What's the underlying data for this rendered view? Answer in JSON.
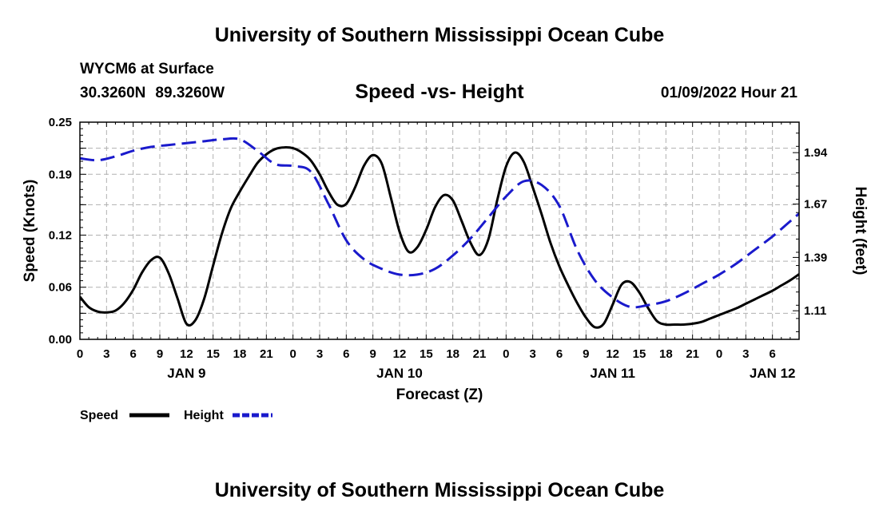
{
  "header": {
    "title": "University of Southern Mississippi Ocean Cube",
    "station": "WYCM6 at Surface",
    "latitude": "30.3260N",
    "longitude": "89.3260W",
    "subtitle": "Speed -vs- Height",
    "datetime": "01/09/2022 Hour 21"
  },
  "footer": {
    "title": "University of Southern Mississippi Ocean Cube"
  },
  "colors": {
    "speed": "#000000",
    "height": "#1a1acc",
    "grid": "#b0b0b0"
  },
  "chart_data": {
    "type": "line",
    "title": "Speed -vs- Height",
    "xlabel": "Forecast (Z)",
    "ylabel": "Speed (Knots)",
    "ylabel_right": "Height (feet)",
    "grid": true,
    "legend_position": "bottom-left",
    "x_range_hours": [
      0,
      81
    ],
    "x_tick_labels": [
      "0",
      "3",
      "6",
      "9",
      "12",
      "15",
      "18",
      "21",
      "0",
      "3",
      "6",
      "9",
      "12",
      "15",
      "18",
      "21",
      "0",
      "3",
      "6",
      "9",
      "12",
      "15",
      "18",
      "21",
      "0",
      "3",
      "6"
    ],
    "date_labels": [
      {
        "label": "JAN 9",
        "hour": 12
      },
      {
        "label": "JAN 10",
        "hour": 36
      },
      {
        "label": "JAN 11",
        "hour": 60
      },
      {
        "label": "JAN 12",
        "hour": 78
      }
    ],
    "y_left": {
      "range": [
        0,
        0.25
      ],
      "ticks": [
        0.0,
        0.06,
        0.12,
        0.19,
        0.25
      ],
      "tick_labels": [
        "0.00",
        "0.06",
        "0.12",
        "0.19",
        "0.25"
      ]
    },
    "y_right": {
      "range": [
        0.96,
        2.1
      ],
      "ticks": [
        1.11,
        1.39,
        1.67,
        1.94
      ],
      "tick_labels": [
        "1.11",
        "1.39",
        "1.67",
        "1.94"
      ]
    },
    "series": [
      {
        "name": "Speed",
        "axis": "left",
        "style": "solid",
        "points": [
          [
            0,
            0.049
          ],
          [
            1,
            0.037
          ],
          [
            2,
            0.032
          ],
          [
            3,
            0.031
          ],
          [
            4,
            0.033
          ],
          [
            5,
            0.042
          ],
          [
            6,
            0.057
          ],
          [
            7,
            0.077
          ],
          [
            8,
            0.091
          ],
          [
            9,
            0.094
          ],
          [
            10,
            0.076
          ],
          [
            11,
            0.047
          ],
          [
            12,
            0.018
          ],
          [
            13,
            0.022
          ],
          [
            14,
            0.047
          ],
          [
            15,
            0.085
          ],
          [
            16,
            0.122
          ],
          [
            17,
            0.151
          ],
          [
            18,
            0.17
          ],
          [
            19,
            0.187
          ],
          [
            20,
            0.203
          ],
          [
            21,
            0.213
          ],
          [
            22,
            0.219
          ],
          [
            23,
            0.221
          ],
          [
            24,
            0.22
          ],
          [
            25,
            0.215
          ],
          [
            26,
            0.206
          ],
          [
            27,
            0.19
          ],
          [
            28,
            0.17
          ],
          [
            29,
            0.155
          ],
          [
            30,
            0.156
          ],
          [
            31,
            0.175
          ],
          [
            32,
            0.2
          ],
          [
            33,
            0.212
          ],
          [
            34,
            0.202
          ],
          [
            35,
            0.164
          ],
          [
            36,
            0.124
          ],
          [
            37,
            0.101
          ],
          [
            38,
            0.106
          ],
          [
            39,
            0.126
          ],
          [
            40,
            0.152
          ],
          [
            41,
            0.166
          ],
          [
            42,
            0.16
          ],
          [
            43,
            0.136
          ],
          [
            44,
            0.111
          ],
          [
            45,
            0.097
          ],
          [
            46,
            0.115
          ],
          [
            47,
            0.16
          ],
          [
            48,
            0.199
          ],
          [
            49,
            0.215
          ],
          [
            50,
            0.204
          ],
          [
            51,
            0.175
          ],
          [
            52,
            0.144
          ],
          [
            53,
            0.111
          ],
          [
            54,
            0.084
          ],
          [
            55,
            0.062
          ],
          [
            56,
            0.042
          ],
          [
            57,
            0.025
          ],
          [
            58,
            0.014
          ],
          [
            59,
            0.018
          ],
          [
            60,
            0.04
          ],
          [
            61,
            0.063
          ],
          [
            62,
            0.066
          ],
          [
            63,
            0.054
          ],
          [
            64,
            0.036
          ],
          [
            65,
            0.021
          ],
          [
            66,
            0.017
          ],
          [
            67,
            0.017
          ],
          [
            68,
            0.017
          ],
          [
            69,
            0.018
          ],
          [
            70,
            0.02
          ],
          [
            71,
            0.024
          ],
          [
            72,
            0.028
          ],
          [
            73,
            0.032
          ],
          [
            74,
            0.036
          ],
          [
            75,
            0.041
          ],
          [
            76,
            0.046
          ],
          [
            77,
            0.051
          ],
          [
            78,
            0.056
          ],
          [
            79,
            0.062
          ],
          [
            80,
            0.068
          ],
          [
            81,
            0.075
          ]
        ]
      },
      {
        "name": "Height",
        "axis": "right",
        "style": "dashed",
        "points": [
          [
            0,
            1.91
          ],
          [
            2,
            1.9
          ],
          [
            4,
            1.92
          ],
          [
            6,
            1.95
          ],
          [
            8,
            1.97
          ],
          [
            10,
            1.98
          ],
          [
            12,
            1.99
          ],
          [
            14,
            2.0
          ],
          [
            16,
            2.01
          ],
          [
            18,
            2.01
          ],
          [
            20,
            1.95
          ],
          [
            22,
            1.88
          ],
          [
            24,
            1.87
          ],
          [
            26,
            1.84
          ],
          [
            28,
            1.67
          ],
          [
            30,
            1.48
          ],
          [
            32,
            1.38
          ],
          [
            34,
            1.33
          ],
          [
            36,
            1.3
          ],
          [
            38,
            1.3
          ],
          [
            40,
            1.33
          ],
          [
            42,
            1.4
          ],
          [
            44,
            1.49
          ],
          [
            46,
            1.6
          ],
          [
            48,
            1.71
          ],
          [
            50,
            1.79
          ],
          [
            52,
            1.77
          ],
          [
            54,
            1.66
          ],
          [
            56,
            1.43
          ],
          [
            58,
            1.27
          ],
          [
            60,
            1.18
          ],
          [
            62,
            1.13
          ],
          [
            64,
            1.14
          ],
          [
            66,
            1.16
          ],
          [
            68,
            1.2
          ],
          [
            70,
            1.25
          ],
          [
            72,
            1.3
          ],
          [
            74,
            1.36
          ],
          [
            76,
            1.43
          ],
          [
            78,
            1.5
          ],
          [
            80,
            1.58
          ],
          [
            81,
            1.62
          ]
        ]
      }
    ]
  },
  "legend": {
    "speed_label": "Speed",
    "height_label": "Height"
  }
}
